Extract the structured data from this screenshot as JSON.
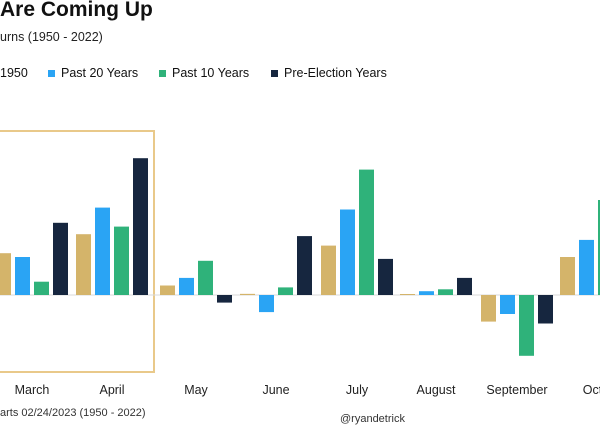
{
  "header": {
    "title": "Are Coming Up",
    "subtitle": "urns (1950 - 2022)"
  },
  "footer": {
    "source": "arts 02/24/2023 (1950 - 2022)",
    "handle": "@ryandetrick"
  },
  "colors": {
    "since_1950": "#d4b46a",
    "past_20": "#2aa4f4",
    "past_10": "#2fb27a",
    "pre_election": "#16263f",
    "highlight": "#e9c98a"
  },
  "chart_data": {
    "type": "bar",
    "highlight_categories": [
      "March",
      "April"
    ],
    "categories": [
      "March",
      "April",
      "May",
      "June",
      "July",
      "August",
      "September",
      "Octo"
    ],
    "series": [
      {
        "name": "1950",
        "color": "#d4b46a",
        "values": [
          1.1,
          1.6,
          0.25,
          0.03,
          1.3,
          0.0,
          -0.7,
          1.0
        ]
      },
      {
        "name": "Past 20 Years",
        "color": "#2aa4f4",
        "values": [
          1.0,
          2.3,
          0.45,
          -0.45,
          2.25,
          0.1,
          -0.5,
          1.45
        ]
      },
      {
        "name": "Past 10 Years",
        "color": "#2fb27a",
        "values": [
          0.35,
          1.8,
          0.9,
          0.2,
          3.3,
          0.15,
          -1.6,
          2.5
        ]
      },
      {
        "name": "Pre-Election Years",
        "color": "#16263f",
        "values": [
          1.9,
          3.6,
          -0.2,
          1.55,
          0.95,
          0.45,
          -0.75,
          null
        ]
      }
    ]
  }
}
